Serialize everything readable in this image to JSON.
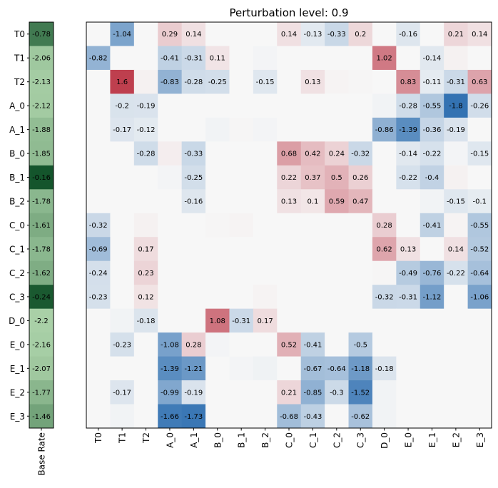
{
  "chart_data": {
    "type": "heatmap",
    "title": "Perturbation level: 0.9",
    "rows": [
      "T0",
      "T1",
      "T2",
      "A_0",
      "A_1",
      "B_0",
      "B_1",
      "B_2",
      "C_0",
      "C_1",
      "C_2",
      "C_3",
      "D_0",
      "E_0",
      "E_1",
      "E_2",
      "E_3"
    ],
    "columns": [
      "T0",
      "T1",
      "T2",
      "A_0",
      "A_1",
      "B_0",
      "B_1",
      "B_2",
      "C_0",
      "C_1",
      "C_2",
      "C_3",
      "D_0",
      "E_0",
      "E_1",
      "E_2",
      "E_3"
    ],
    "base_rate": {
      "label": "Base Rate",
      "values": [
        -0.78,
        -2.06,
        -2.13,
        -2.12,
        -1.88,
        -1.85,
        -0.16,
        -1.78,
        -1.61,
        -1.78,
        -1.62,
        -0.24,
        -2.2,
        -2.16,
        -2.07,
        -1.77,
        -1.46
      ]
    },
    "color_range": [
      -2,
      2
    ],
    "label_threshold": 0.1,
    "values": [
      [
        0,
        -1.04,
        0,
        0.29,
        0.14,
        0,
        0,
        0,
        0.14,
        -0.13,
        -0.33,
        0.2,
        0,
        -0.16,
        0,
        0.21,
        0.14
      ],
      [
        -0.82,
        0,
        0,
        -0.41,
        -0.31,
        0.11,
        0,
        -0.02,
        0,
        0,
        0,
        0,
        1.02,
        0,
        -0.14,
        0.03,
        0
      ],
      [
        0,
        1.6,
        0.03,
        -0.83,
        -0.28,
        -0.25,
        0,
        -0.15,
        0,
        0.13,
        0.02,
        0.01,
        0,
        0.83,
        -0.11,
        -0.31,
        0.63
      ],
      [
        0,
        -0.2,
        -0.19,
        0,
        0,
        0,
        0,
        0,
        0,
        0,
        0,
        0,
        -0.03,
        -0.28,
        -0.55,
        -1.8,
        -0.26
      ],
      [
        0,
        -0.17,
        -0.12,
        0,
        0,
        -0.03,
        0.01,
        -0.02,
        0,
        0,
        0,
        0,
        -0.86,
        -1.39,
        -0.36,
        -0.19,
        0
      ],
      [
        0,
        0,
        -0.28,
        0.05,
        -0.33,
        0,
        0,
        0,
        0.68,
        0.42,
        0.24,
        -0.32,
        0,
        -0.14,
        -0.22,
        -0.02,
        -0.15
      ],
      [
        0,
        0,
        0,
        -0.02,
        -0.25,
        0,
        0,
        0,
        0.22,
        0.37,
        0.5,
        0.26,
        0,
        -0.22,
        -0.4,
        0.03,
        0
      ],
      [
        0,
        0,
        0,
        0,
        -0.16,
        0,
        0,
        0,
        0.13,
        0.1,
        0.59,
        0.47,
        0,
        0,
        -0.03,
        -0.15,
        -0.1
      ],
      [
        -0.32,
        0,
        0.03,
        0,
        0,
        0.01,
        0.02,
        0,
        0,
        0,
        0,
        0,
        0.28,
        0,
        -0.41,
        0.02,
        -0.55
      ],
      [
        -0.69,
        0,
        0.17,
        0,
        0,
        0,
        0,
        0,
        0,
        0,
        0,
        0,
        0.62,
        0.13,
        0,
        0.14,
        -0.52
      ],
      [
        -0.24,
        0,
        0.23,
        0,
        0,
        0,
        0,
        0,
        0,
        0,
        0,
        0,
        0.01,
        -0.49,
        -0.76,
        -0.22,
        -0.64
      ],
      [
        -0.23,
        0,
        0.12,
        0,
        0,
        0,
        0,
        0.02,
        0,
        0,
        0,
        0,
        -0.32,
        -0.31,
        -1.12,
        0,
        -1.06
      ],
      [
        0,
        -0.03,
        -0.18,
        0,
        0,
        1.08,
        -0.31,
        0.17,
        0,
        0,
        0,
        0,
        0,
        0,
        0,
        0,
        0
      ],
      [
        0,
        -0.23,
        0,
        -1.08,
        0.28,
        -0.02,
        0,
        0,
        0.52,
        -0.41,
        0,
        -0.5,
        0,
        0,
        0,
        0,
        0
      ],
      [
        0,
        0,
        0,
        -1.39,
        -1.21,
        0,
        -0.02,
        -0.04,
        0,
        -0.67,
        -0.64,
        -1.18,
        -0.18,
        0,
        0,
        0,
        0
      ],
      [
        0,
        -0.17,
        0,
        -0.99,
        -0.19,
        0,
        0,
        0,
        0.21,
        -0.85,
        -0.3,
        -1.52,
        -0.03,
        0,
        0,
        0,
        0
      ],
      [
        0,
        -0.03,
        0,
        -1.66,
        -1.73,
        0,
        0,
        0,
        -0.68,
        -0.43,
        0,
        -0.62,
        -0.03,
        0,
        0,
        0,
        0
      ]
    ],
    "colormap": {
      "negative": "#2166ac",
      "neutral": "#f7f7f7",
      "positive": "#b2182b"
    },
    "base_rate_colormap": {
      "light": "#c7e9c0",
      "dark": "#00441b"
    }
  }
}
